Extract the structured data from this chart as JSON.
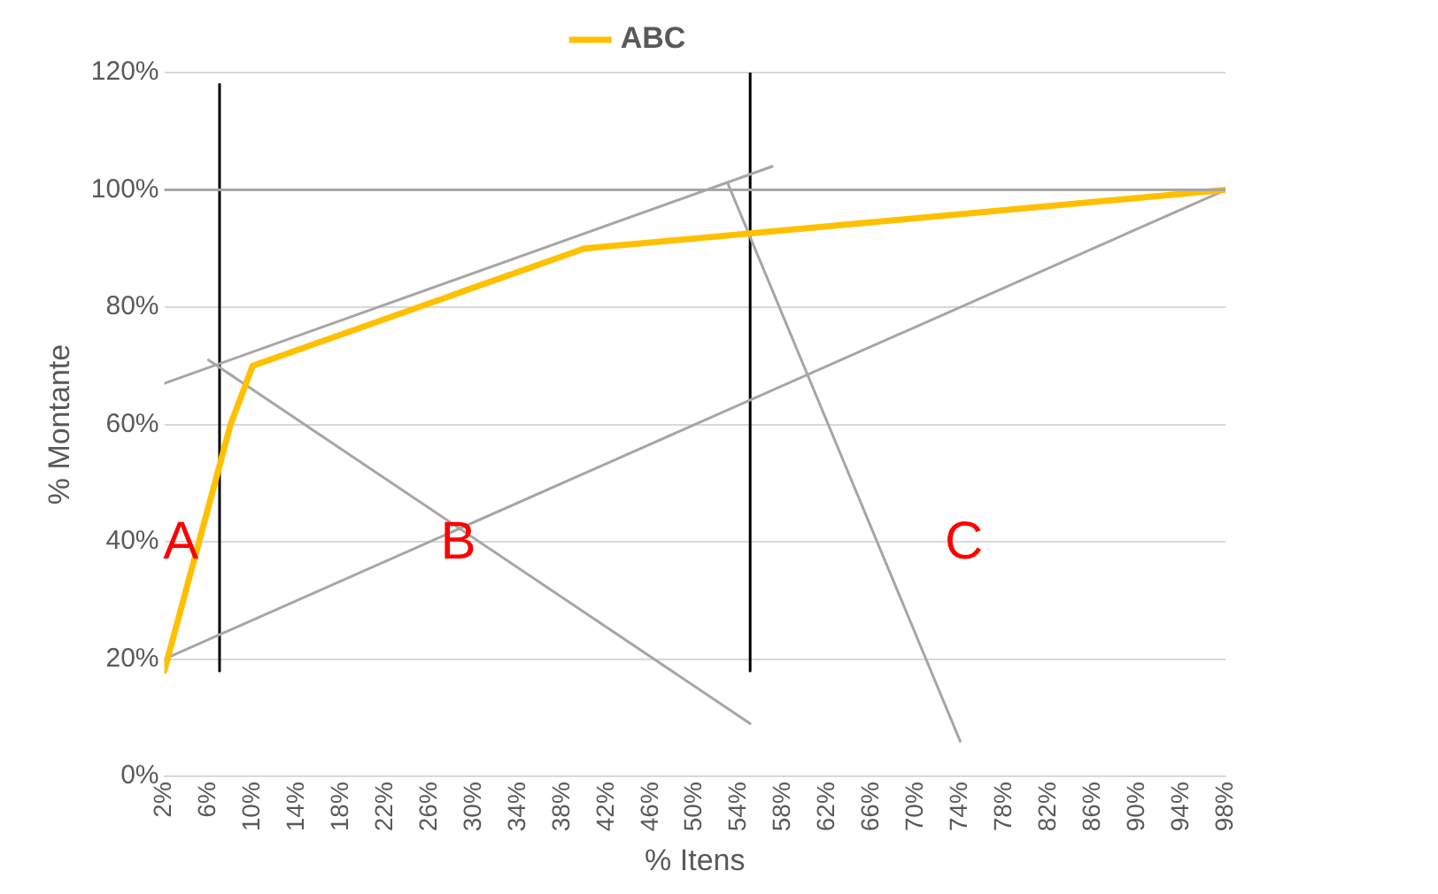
{
  "chart_data": {
    "type": "line",
    "xlabel": "% Itens",
    "ylabel": "% Montante",
    "xlim": [
      2,
      98
    ],
    "ylim": [
      0,
      120
    ],
    "xticks": [
      {
        "value": 2,
        "label": "2%"
      },
      {
        "value": 6,
        "label": "6%"
      },
      {
        "value": 10,
        "label": "10%"
      },
      {
        "value": 14,
        "label": "14%"
      },
      {
        "value": 18,
        "label": "18%"
      },
      {
        "value": 22,
        "label": "22%"
      },
      {
        "value": 26,
        "label": "26%"
      },
      {
        "value": 30,
        "label": "30%"
      },
      {
        "value": 34,
        "label": "34%"
      },
      {
        "value": 38,
        "label": "38%"
      },
      {
        "value": 42,
        "label": "42%"
      },
      {
        "value": 46,
        "label": "46%"
      },
      {
        "value": 50,
        "label": "50%"
      },
      {
        "value": 54,
        "label": "54%"
      },
      {
        "value": 58,
        "label": "58%"
      },
      {
        "value": 62,
        "label": "62%"
      },
      {
        "value": 66,
        "label": "66%"
      },
      {
        "value": 70,
        "label": "70%"
      },
      {
        "value": 74,
        "label": "74%"
      },
      {
        "value": 78,
        "label": "78%"
      },
      {
        "value": 82,
        "label": "82%"
      },
      {
        "value": 86,
        "label": "86%"
      },
      {
        "value": 90,
        "label": "90%"
      },
      {
        "value": 94,
        "label": "94%"
      },
      {
        "value": 98,
        "label": "98%"
      }
    ],
    "yticks": [
      {
        "value": 0,
        "label": "0%"
      },
      {
        "value": 20,
        "label": "20%"
      },
      {
        "value": 40,
        "label": "40%"
      },
      {
        "value": 60,
        "label": "60%"
      },
      {
        "value": 80,
        "label": "80%"
      },
      {
        "value": 100,
        "label": "100%"
      },
      {
        "value": 120,
        "label": "120%"
      }
    ],
    "grid": "y",
    "legend": "top",
    "marker": "none",
    "line_style": "solid",
    "series": [
      {
        "name": "ABC",
        "color": "#ffc000",
        "x": [
          2,
          8,
          10,
          40,
          98
        ],
        "values": [
          18,
          60,
          70,
          90,
          100
        ]
      },
      {
        "color": "#a6a6a6",
        "x": [
          2,
          57
        ],
        "values": [
          67,
          104
        ]
      },
      {
        "color": "#a6a6a6",
        "x": [
          2,
          98
        ],
        "values": [
          20,
          100
        ]
      },
      {
        "color": "#a6a6a6",
        "x": [
          6,
          55
        ],
        "values": [
          71,
          9
        ]
      },
      {
        "color": "#a6a6a6",
        "x": [
          53,
          74
        ],
        "values": [
          101,
          6
        ]
      },
      {
        "color": "#000000",
        "x": [
          7,
          7
        ],
        "values": [
          18,
          118
        ]
      },
      {
        "color": "#000000",
        "x": [
          55,
          55
        ],
        "values": [
          18,
          120
        ]
      }
    ],
    "ref_lines": [
      {
        "axis": "y",
        "value": 100,
        "color": "#a6a6a6"
      }
    ],
    "annotations": [
      "A",
      "B",
      "C"
    ]
  }
}
